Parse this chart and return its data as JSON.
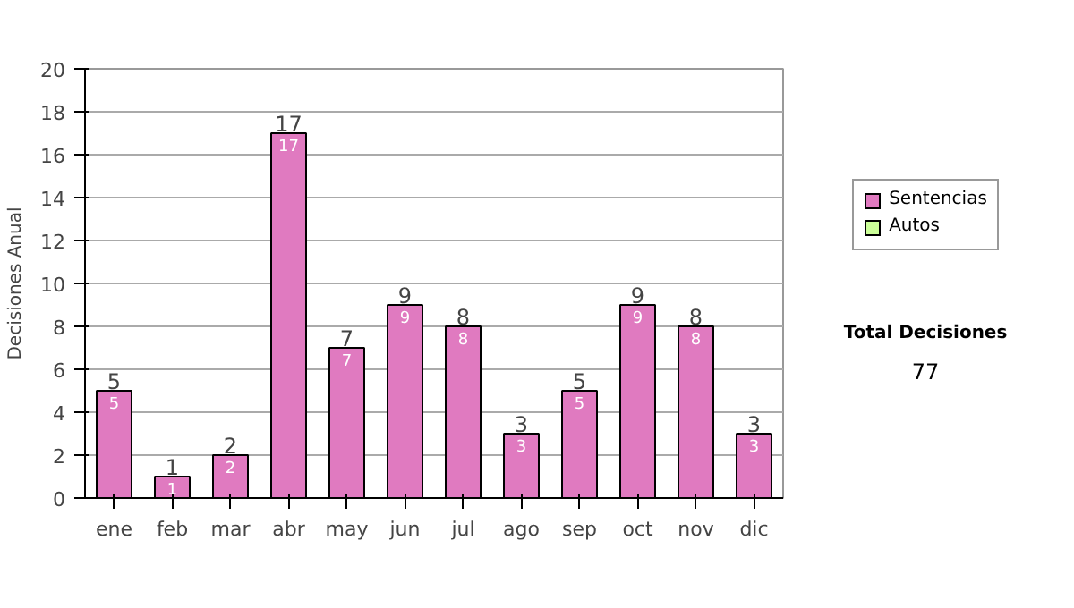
{
  "chart_data": {
    "type": "bar",
    "ylabel": "Decisiones Anual",
    "categories": [
      "ene",
      "feb",
      "mar",
      "abr",
      "may",
      "jun",
      "jul",
      "ago",
      "sep",
      "oct",
      "nov",
      "dic"
    ],
    "series": [
      {
        "name": "Sentencias",
        "color": "#e07ac0",
        "values": [
          5,
          1,
          2,
          17,
          7,
          9,
          8,
          3,
          5,
          9,
          8,
          3
        ]
      },
      {
        "name": "Autos",
        "color": "#ccff99",
        "values": [
          null,
          null,
          null,
          null,
          null,
          null,
          null,
          null,
          null,
          null,
          null,
          null
        ]
      }
    ],
    "totals": [
      "5",
      "1",
      "2",
      "17",
      "7",
      "9",
      "8",
      "3",
      "5",
      "9",
      "8",
      "3"
    ],
    "data_labels": true,
    "ylim": [
      0,
      20
    ],
    "yticks": [
      0,
      2,
      4,
      6,
      8,
      10,
      12,
      14,
      16,
      18,
      20
    ],
    "grid": "y",
    "legend": "right",
    "annotations": [
      "Total Decisiones",
      "77"
    ]
  }
}
